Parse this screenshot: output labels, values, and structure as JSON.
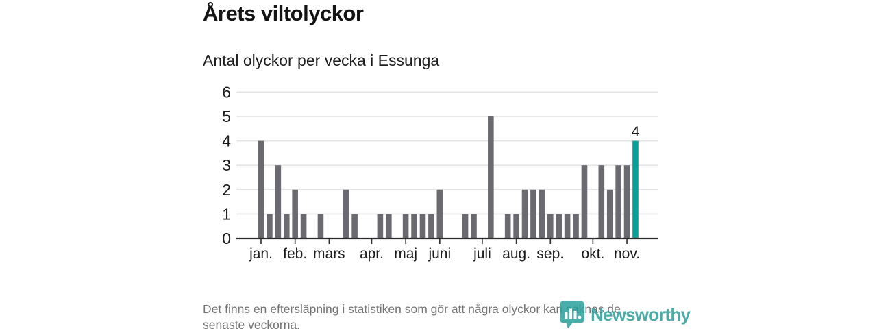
{
  "chart_data": {
    "type": "bar",
    "title": "Årets viltolyckor",
    "subtitle": "Antal olyckor per vecka i Essunga",
    "x_label": "vecka",
    "n_weeks": 45,
    "values": [
      4,
      1,
      3,
      1,
      2,
      1,
      0,
      1,
      0,
      0,
      2,
      1,
      0,
      0,
      1,
      1,
      0,
      1,
      1,
      1,
      1,
      2,
      0,
      0,
      1,
      1,
      0,
      5,
      0,
      1,
      1,
      2,
      2,
      2,
      1,
      1,
      1,
      1,
      3,
      0,
      3,
      2,
      3,
      3,
      4
    ],
    "highlight_index": 44,
    "highlight_annotation": "4",
    "yticks": [
      0,
      1,
      2,
      3,
      4,
      5,
      6
    ],
    "ylim": [
      0,
      6
    ],
    "grid": true,
    "legend_position": "none",
    "month_ticks": [
      {
        "label": "jan.",
        "week": 1
      },
      {
        "label": "feb.",
        "week": 5
      },
      {
        "label": "mars",
        "week": 9
      },
      {
        "label": "apr.",
        "week": 14
      },
      {
        "label": "maj",
        "week": 18
      },
      {
        "label": "juni",
        "week": 22
      },
      {
        "label": "juli",
        "week": 27
      },
      {
        "label": "aug.",
        "week": 31
      },
      {
        "label": "sep.",
        "week": 35
      },
      {
        "label": "okt.",
        "week": 40
      },
      {
        "label": "nov.",
        "week": 44
      }
    ],
    "colors": {
      "bar": "#6b6a70",
      "highlight": "#0aa09a",
      "grid": "#e4e4e4",
      "axis": "#2b2b2b",
      "text": "#1a1a1a"
    }
  },
  "footer": {
    "line1": "Det finns en eftersläpning i statistiken som gör att några olyckor kan saknas de",
    "line2": "senaste veckorna.",
    "logo_text": "Newsworthy"
  }
}
